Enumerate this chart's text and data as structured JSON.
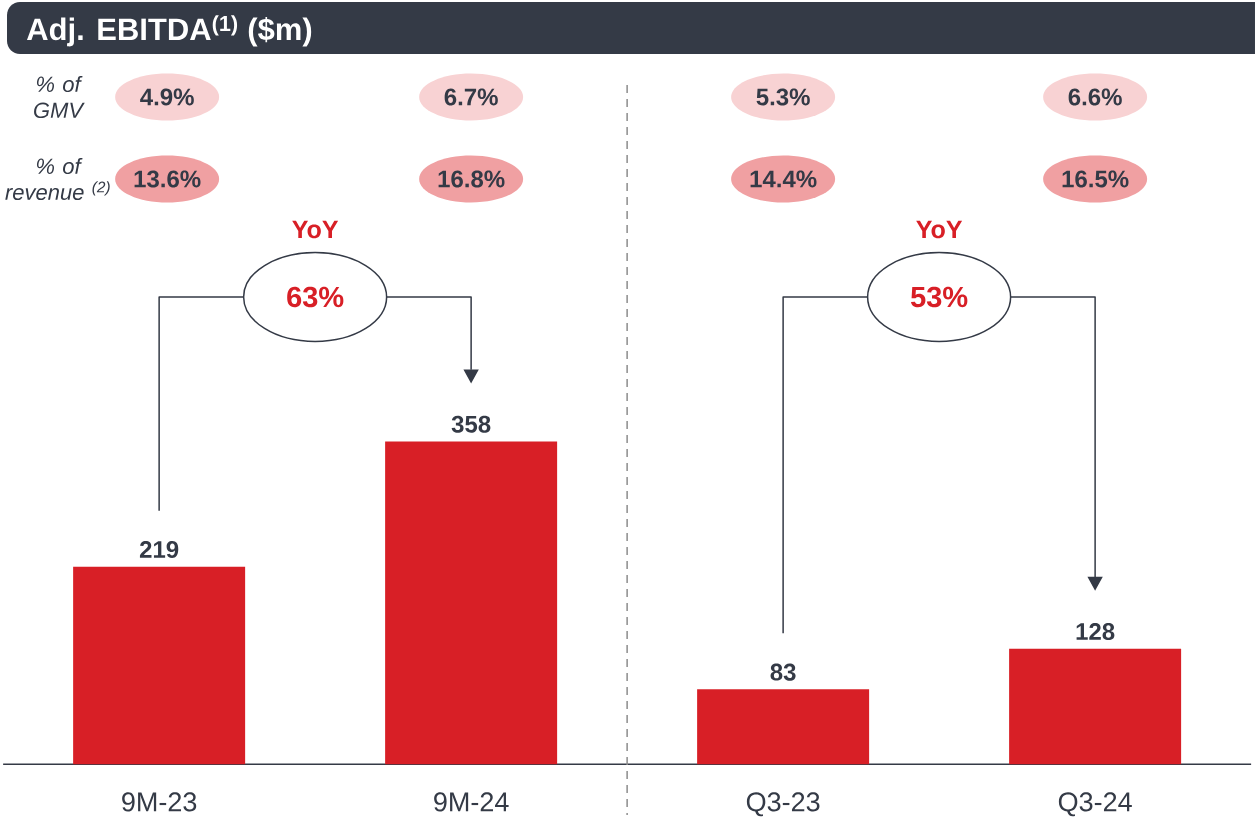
{
  "chart_data": {
    "type": "bar",
    "title": "Adj. EBITDA$^{(1)}$ ($m)",
    "categories": [
      "9M-23",
      "9M-24",
      "Q3-23",
      "Q3-24"
    ],
    "values": [
      219,
      358,
      83,
      128
    ],
    "color": "#d81f26",
    "data_labels": true,
    "annotations": [
      "% of GMV",
      "4.9%",
      "6.7%",
      "5.3%",
      "6.6%",
      "% of revenue $^{(2)}$",
      "13.6%",
      "16.8%",
      "14.4%",
      "16.5%",
      "YoY",
      "63%",
      "YoY",
      "53%"
    ]
  }
}
